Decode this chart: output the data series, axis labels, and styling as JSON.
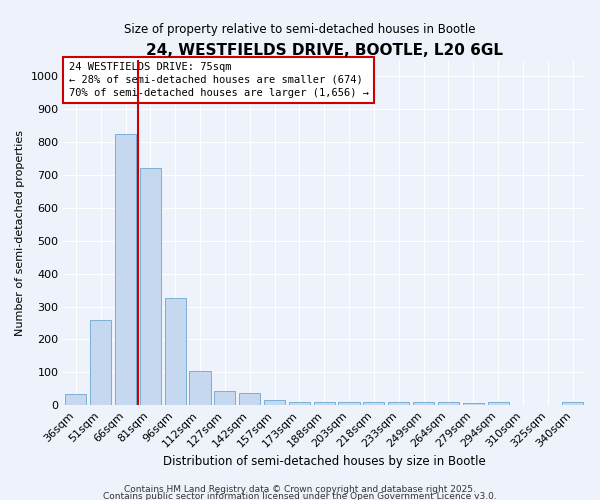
{
  "title": "24, WESTFIELDS DRIVE, BOOTLE, L20 6GL",
  "subtitle": "Size of property relative to semi-detached houses in Bootle",
  "xlabel": "Distribution of semi-detached houses by size in Bootle",
  "ylabel": "Number of semi-detached properties",
  "categories": [
    "36sqm",
    "51sqm",
    "66sqm",
    "81sqm",
    "96sqm",
    "112sqm",
    "127sqm",
    "142sqm",
    "157sqm",
    "173sqm",
    "188sqm",
    "203sqm",
    "218sqm",
    "233sqm",
    "249sqm",
    "264sqm",
    "279sqm",
    "294sqm",
    "310sqm",
    "325sqm",
    "340sqm"
  ],
  "values": [
    35,
    260,
    825,
    720,
    325,
    103,
    43,
    37,
    15,
    10,
    8,
    8,
    10,
    10,
    10,
    10,
    5,
    10,
    0,
    0,
    10
  ],
  "bar_color": "#c5d8f0",
  "bar_edge_color": "#7bafd4",
  "background_color": "#eef2fb",
  "grid_color": "#ffffff",
  "red_line_x": 2.5,
  "annotation_title": "24 WESTFIELDS DRIVE: 75sqm",
  "annotation_line1": "← 28% of semi-detached houses are smaller (674)",
  "annotation_line2": "70% of semi-detached houses are larger (1,656) →",
  "annotation_box_color": "#ffffff",
  "annotation_box_edge": "#cc0000",
  "red_line_color": "#cc0000",
  "ylim": [
    0,
    1050
  ],
  "yticks": [
    0,
    100,
    200,
    300,
    400,
    500,
    600,
    700,
    800,
    900,
    1000
  ],
  "footer1": "Contains HM Land Registry data © Crown copyright and database right 2025.",
  "footer2": "Contains public sector information licensed under the Open Government Licence v3.0."
}
